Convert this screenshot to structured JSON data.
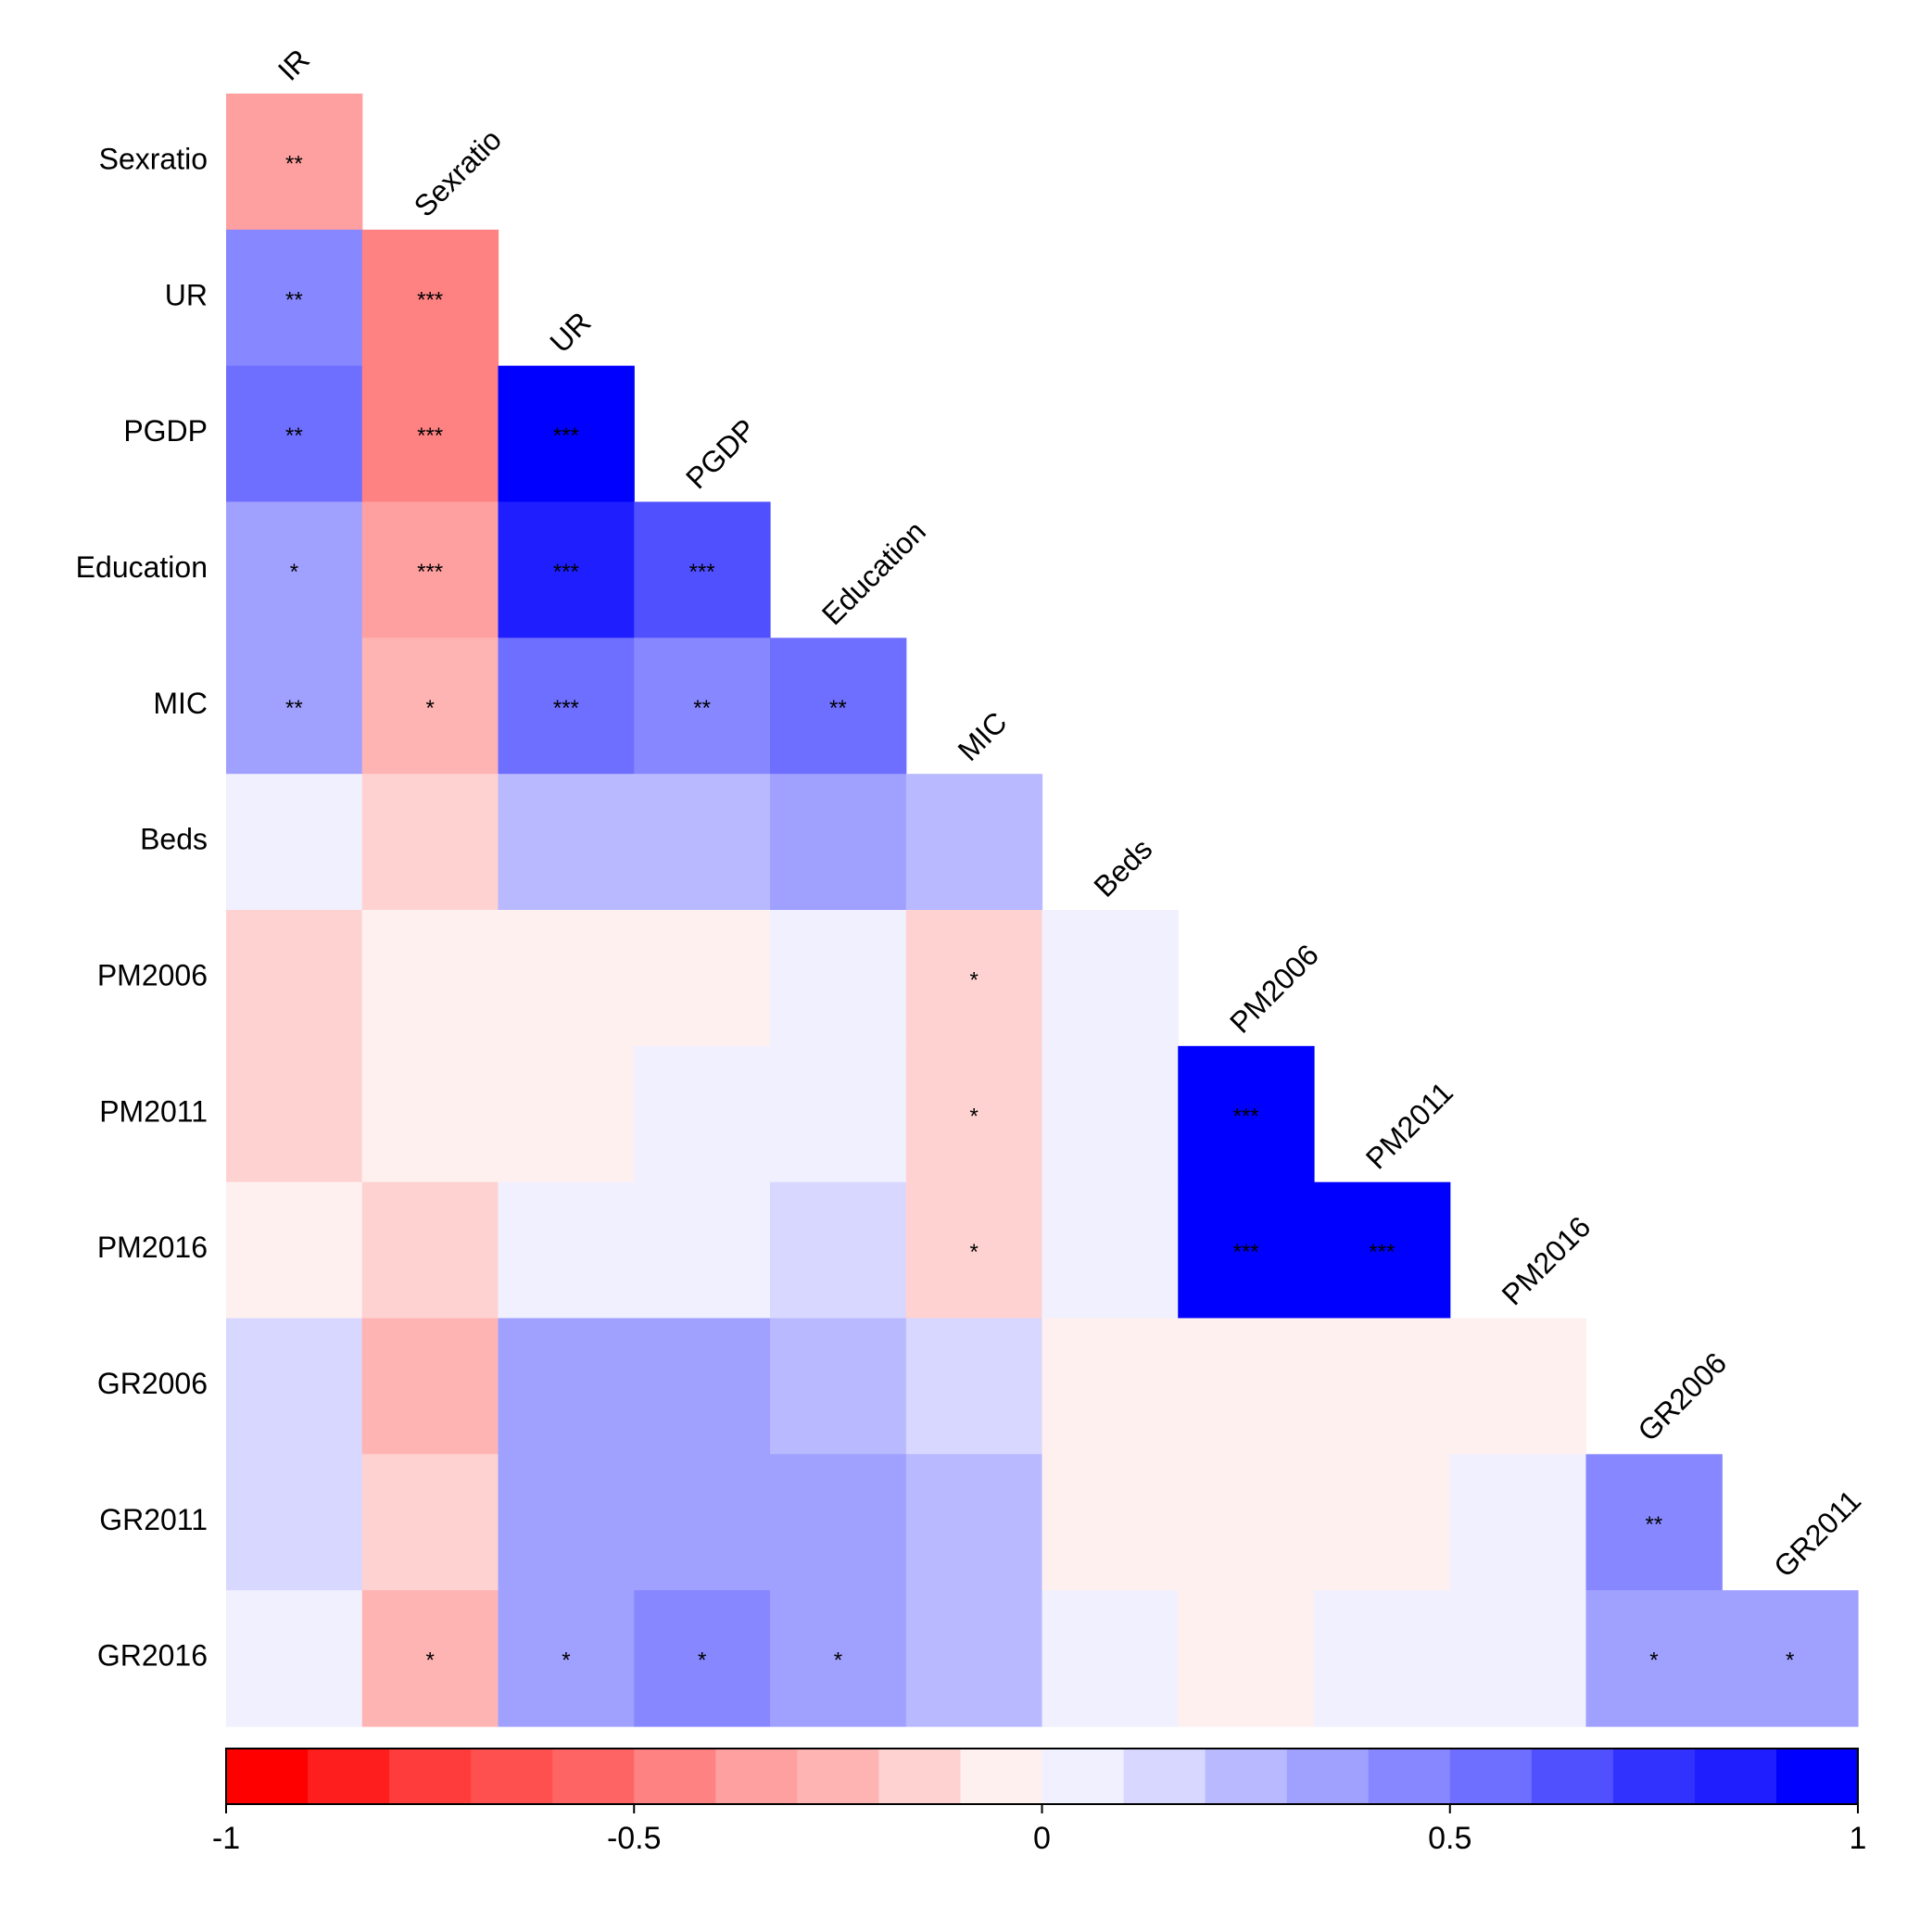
{
  "chart_data": {
    "type": "heatmap",
    "title": "",
    "variables": [
      "IR",
      "Sexratio",
      "UR",
      "PGDP",
      "Education",
      "MIC",
      "Beds",
      "PM2006",
      "PM2011",
      "PM2016",
      "GR2006",
      "GR2011",
      "GR2016"
    ],
    "row_labels": [
      "Sexratio",
      "UR",
      "PGDP",
      "Education",
      "MIC",
      "Beds",
      "PM2006",
      "PM2011",
      "PM2016",
      "GR2006",
      "GR2011",
      "GR2016"
    ],
    "col_labels": [
      "IR",
      "Sexratio",
      "UR",
      "PGDP",
      "Education",
      "MIC",
      "Beds",
      "PM2006",
      "PM2011",
      "PM2016",
      "GR2006",
      "GR2011"
    ],
    "values": [
      [
        -0.35
      ],
      [
        0.45,
        -0.45
      ],
      [
        0.55,
        -0.45,
        0.95
      ],
      [
        0.3,
        -0.35,
        0.85,
        0.65
      ],
      [
        0.3,
        -0.25,
        0.55,
        0.45,
        0.55
      ],
      [
        0.05,
        -0.15,
        0.2,
        0.2,
        0.3,
        0.2
      ],
      [
        -0.15,
        -0.05,
        -0.05,
        -0.05,
        0.05,
        -0.15,
        0.05
      ],
      [
        -0.15,
        -0.05,
        -0.05,
        0.05,
        0.05,
        -0.15,
        0.05,
        0.95
      ],
      [
        -0.05,
        -0.15,
        0.05,
        0.05,
        0.15,
        -0.15,
        0.05,
        0.95,
        0.95
      ],
      [
        0.15,
        -0.25,
        0.3,
        0.3,
        0.2,
        0.15,
        -0.05,
        -0.05,
        -0.05,
        -0.05
      ],
      [
        0.15,
        -0.15,
        0.3,
        0.3,
        0.3,
        0.2,
        -0.05,
        -0.05,
        -0.05,
        0.05,
        0.45
      ],
      [
        0.05,
        -0.25,
        0.35,
        0.45,
        0.3,
        0.2,
        0.05,
        -0.05,
        0.05,
        0.05,
        0.3,
        0.3
      ]
    ],
    "significance": [
      [
        "**"
      ],
      [
        "**",
        "***"
      ],
      [
        "**",
        "***",
        "***"
      ],
      [
        "*",
        "***",
        "***",
        "***"
      ],
      [
        "**",
        "*",
        "***",
        "**",
        "**"
      ],
      [
        "",
        "",
        "",
        "",
        "",
        ""
      ],
      [
        "",
        "",
        "",
        "",
        "",
        "*",
        ""
      ],
      [
        "",
        "",
        "",
        "",
        "",
        "*",
        "",
        "***"
      ],
      [
        "",
        "",
        "",
        "",
        "",
        "*",
        "",
        "***",
        "***"
      ],
      [
        "",
        "",
        "",
        "",
        "",
        "",
        "",
        "",
        "",
        ""
      ],
      [
        "",
        "",
        "",
        "",
        "",
        "",
        "",
        "",
        "",
        "",
        "**"
      ],
      [
        "",
        "*",
        "*",
        "*",
        "*",
        "",
        "",
        "",
        "",
        "",
        "*",
        "*"
      ]
    ],
    "colorbar": {
      "min": -1,
      "max": 1,
      "ticks": [
        -1,
        -0.5,
        0,
        0.5,
        1
      ],
      "tick_labels": [
        "-1",
        "-0.5",
        "0",
        "0.5",
        "1"
      ],
      "palette": [
        "#ff0000",
        "#ff1e1e",
        "#ff3c3c",
        "#ff5050",
        "#ff6464",
        "#ff8282",
        "#ffa0a0",
        "#ffb4b4",
        "#ffd2d2",
        "#fff0f0",
        "#f0f0ff",
        "#d7d7ff",
        "#b9b9ff",
        "#a0a0ff",
        "#8787ff",
        "#6e6eff",
        "#5050ff",
        "#3232ff",
        "#1e1eff",
        "#0000ff"
      ]
    },
    "legend_position": "bottom"
  }
}
